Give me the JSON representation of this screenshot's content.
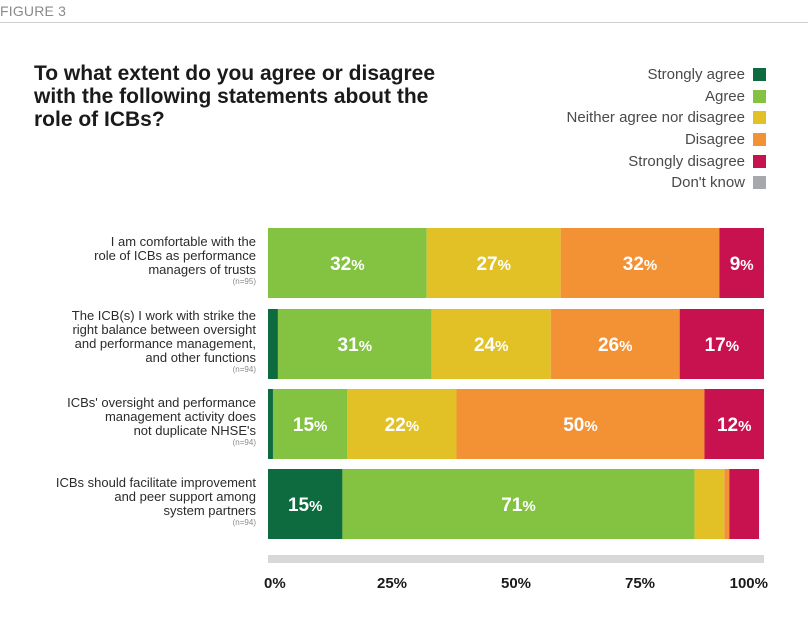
{
  "figure_label": "FIGURE 3",
  "chart_data": {
    "type": "bar",
    "orientation": "horizontal-stacked-percent",
    "title": "To what extent do you agree or disagree with the following statements about the role of ICBs?",
    "legend_position": "top-right",
    "series": [
      {
        "name": "Strongly agree",
        "color": "#0d6b3f",
        "values": [
          0,
          2,
          1,
          15
        ]
      },
      {
        "name": "Agree",
        "color": "#83c341",
        "values": [
          32,
          31,
          15,
          71
        ]
      },
      {
        "name": "Neither agree nor disagree",
        "color": "#e2c127",
        "values": [
          27,
          24,
          22,
          6
        ]
      },
      {
        "name": "Disagree",
        "color": "#f39235",
        "values": [
          32,
          26,
          50,
          1
        ]
      },
      {
        "name": "Strongly disagree",
        "color": "#c8124f",
        "values": [
          9,
          17,
          12,
          6
        ]
      },
      {
        "name": "Don't know",
        "color": "#a6a8ab",
        "values": [
          0,
          0,
          0,
          0
        ]
      }
    ],
    "categories": [
      {
        "label_lines": [
          "I am comfortable with the",
          "role of ICBs as performance",
          "managers of trusts"
        ],
        "n": "(n=95)"
      },
      {
        "label_lines": [
          "The ICB(s) I work with strike the",
          "right balance between oversight",
          "and performance management,",
          "and other functions"
        ],
        "n": "(n=94)"
      },
      {
        "label_lines": [
          "ICBs' oversight and performance",
          "management activity does",
          "not duplicate NHSE's"
        ],
        "n": "(n=94)"
      },
      {
        "label_lines": [
          "ICBs should facilitate improvement",
          "and peer support among",
          "system partners"
        ],
        "n": "(n=94)"
      }
    ],
    "data_labels": [
      [
        null,
        "32",
        "27",
        "32",
        "9",
        null
      ],
      [
        null,
        "31",
        "24",
        "26",
        "17",
        null
      ],
      [
        null,
        "15",
        "22",
        "50",
        "12",
        null
      ],
      [
        "15",
        "71",
        null,
        null,
        null,
        null
      ]
    ],
    "label_suffix": "%",
    "x_ticks": [
      "0%",
      "25%",
      "50%",
      "75%",
      "100%"
    ],
    "xlim": [
      0,
      100
    ],
    "grid": false
  }
}
